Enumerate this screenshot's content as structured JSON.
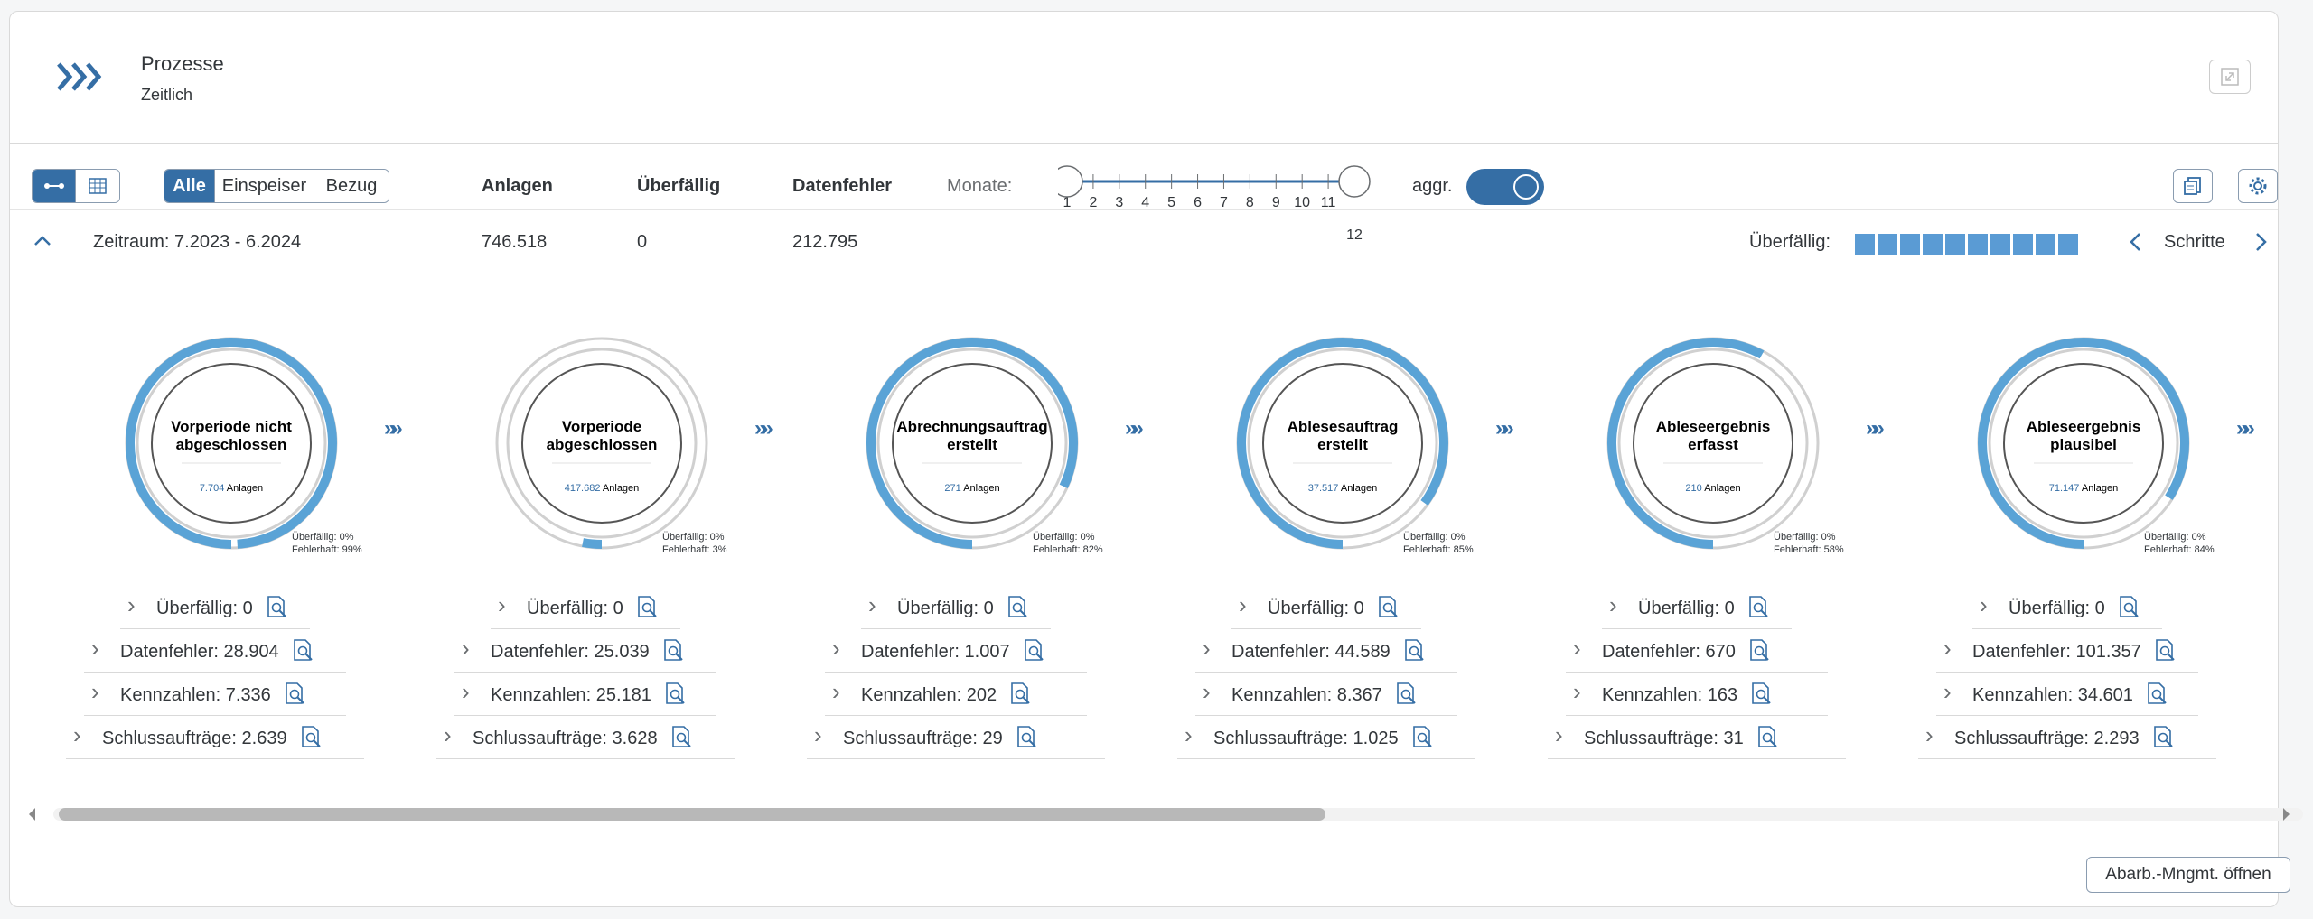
{
  "header": {
    "title": "Prozesse",
    "subtitle": "Zeitlich"
  },
  "toolbar": {
    "view_toggle": [
      "process-view",
      "table-view"
    ],
    "filters": [
      "Alle",
      "Einspeiser",
      "Bezug"
    ],
    "active_filter": "Alle",
    "col_anlagen": "Anlagen",
    "col_ueberfaellig": "Überfällig",
    "col_datenfehler": "Datenfehler",
    "monate_label": "Monate:",
    "slider_ticks": [
      "1",
      "2",
      "3",
      "4",
      "5",
      "6",
      "7",
      "8",
      "9",
      "10",
      "11",
      "12"
    ],
    "aggr_label": "aggr.",
    "aggr_on": true
  },
  "summary": {
    "zeitraum": "Zeitraum: 7.2023 - 6.2024",
    "anlagen": "746.518",
    "ueberfaellig": "0",
    "datenfehler": "212.795",
    "ueberfaellig_label": "Überfällig:",
    "schritte_label": "Schritte",
    "progress_segments": 10
  },
  "steps": [
    {
      "title1": "Vorperiode nicht",
      "title2": "abgeschlossen",
      "count": "7.704",
      "unit": "Anlagen",
      "ueb": "Überfällig: 0%",
      "fehl": "Fehlerhaft: 99%",
      "fehl_fraction": 0.99,
      "lines": [
        "Überfällig: 0",
        "Datenfehler: 28.904",
        "Kennzahlen: 7.336",
        "Schlussaufträge: 2.639"
      ]
    },
    {
      "title1": "Vorperiode",
      "title2": "abgeschlossen",
      "count": "417.682",
      "unit": "Anlagen",
      "ueb": "Überfällig: 0%",
      "fehl": "Fehlerhaft: 3%",
      "fehl_fraction": 0.03,
      "lines": [
        "Überfällig: 0",
        "Datenfehler: 25.039",
        "Kennzahlen: 25.181",
        "Schlussaufträge: 3.628"
      ]
    },
    {
      "title1": "Abrechnungsauftrag",
      "title2": "erstellt",
      "count": "271",
      "unit": "Anlagen",
      "ueb": "Überfällig: 0%",
      "fehl": "Fehlerhaft: 82%",
      "fehl_fraction": 0.82,
      "lines": [
        "Überfällig: 0",
        "Datenfehler: 1.007",
        "Kennzahlen: 202",
        "Schlussaufträge: 29"
      ]
    },
    {
      "title1": "Ablesesauftrag",
      "title2": "erstellt",
      "count": "37.517",
      "unit": "Anlagen",
      "ueb": "Überfällig: 0%",
      "fehl": "Fehlerhaft: 85%",
      "fehl_fraction": 0.85,
      "lines": [
        "Überfällig: 0",
        "Datenfehler: 44.589",
        "Kennzahlen: 8.367",
        "Schlussaufträge: 1.025"
      ]
    },
    {
      "title1": "Ableseergebnis",
      "title2": "erfasst",
      "count": "210",
      "unit": "Anlagen",
      "ueb": "Überfällig: 0%",
      "fehl": "Fehlerhaft: 58%",
      "fehl_fraction": 0.58,
      "lines": [
        "Überfällig: 0",
        "Datenfehler: 670",
        "Kennzahlen: 163",
        "Schlussaufträge: 31"
      ]
    },
    {
      "title1": "Ableseergebnis",
      "title2": "plausibel",
      "count": "71.147",
      "unit": "Anlagen",
      "ueb": "Überfällig: 0%",
      "fehl": "Fehlerhaft: 84%",
      "fehl_fraction": 0.84,
      "lines": [
        "Überfällig: 0",
        "Datenfehler: 101.357",
        "Kennzahlen: 34.601",
        "Schlussaufträge: 2.293"
      ]
    }
  ],
  "footer": {
    "button": "Abarb.-Mngmt. öffnen"
  },
  "colors": {
    "accent": "#356ea5",
    "ring": "#5aa3d6",
    "track": "#d0d0d0"
  }
}
